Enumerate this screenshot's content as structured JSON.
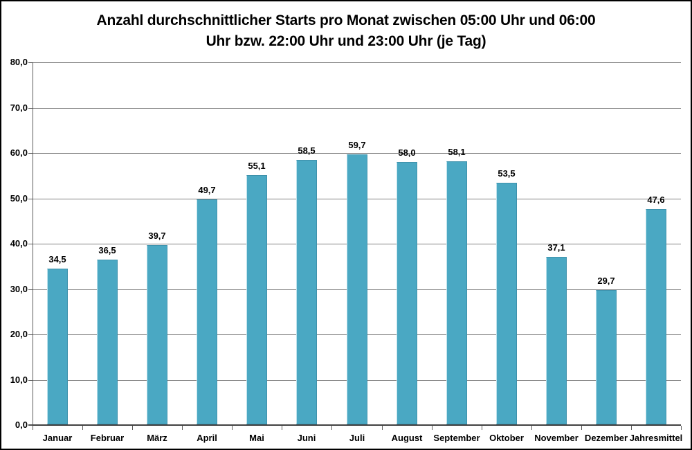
{
  "title_lines": [
    "Anzahl durchschnittlicher Starts pro Monat zwischen 05:00 Uhr und 06:00",
    "Uhr bzw. 22:00 Uhr und 23:00 Uhr (je Tag)"
  ],
  "chart_data": {
    "type": "bar",
    "title": "Anzahl durchschnittlicher Starts pro Monat zwischen 05:00 Uhr und 06:00 Uhr bzw. 22:00 Uhr und 23:00 Uhr (je Tag)",
    "categories": [
      "Januar",
      "Februar",
      "März",
      "April",
      "Mai",
      "Juni",
      "Juli",
      "August",
      "September",
      "Oktober",
      "November",
      "Dezember",
      "Jahresmittel"
    ],
    "values": [
      34.5,
      36.5,
      39.7,
      49.7,
      55.1,
      58.5,
      59.7,
      58.0,
      58.1,
      53.5,
      37.1,
      29.7,
      47.6
    ],
    "value_labels": [
      "34,5",
      "36,5",
      "39,7",
      "49,7",
      "55,1",
      "58,5",
      "59,7",
      "58,0",
      "58,1",
      "53,5",
      "37,1",
      "29,7",
      "47,6"
    ],
    "xlabel": "",
    "ylabel": "",
    "ylim": [
      0,
      80
    ],
    "ytick_step": 10,
    "ytick_labels": [
      "0,0",
      "10,0",
      "20,0",
      "30,0",
      "40,0",
      "50,0",
      "60,0",
      "70,0",
      "80,0"
    ],
    "grid": true,
    "legend_position": "none",
    "colors": {
      "bar_fill": "#4AA8C3",
      "bar_border": "#3E92AC",
      "bar_highlight": "#bfe2ec",
      "gridline": "#7f7f7f",
      "axis": "#595959",
      "zero_line": "#404040",
      "text": "#000000",
      "frame_border": "#000000",
      "background": "#ffffff"
    }
  }
}
